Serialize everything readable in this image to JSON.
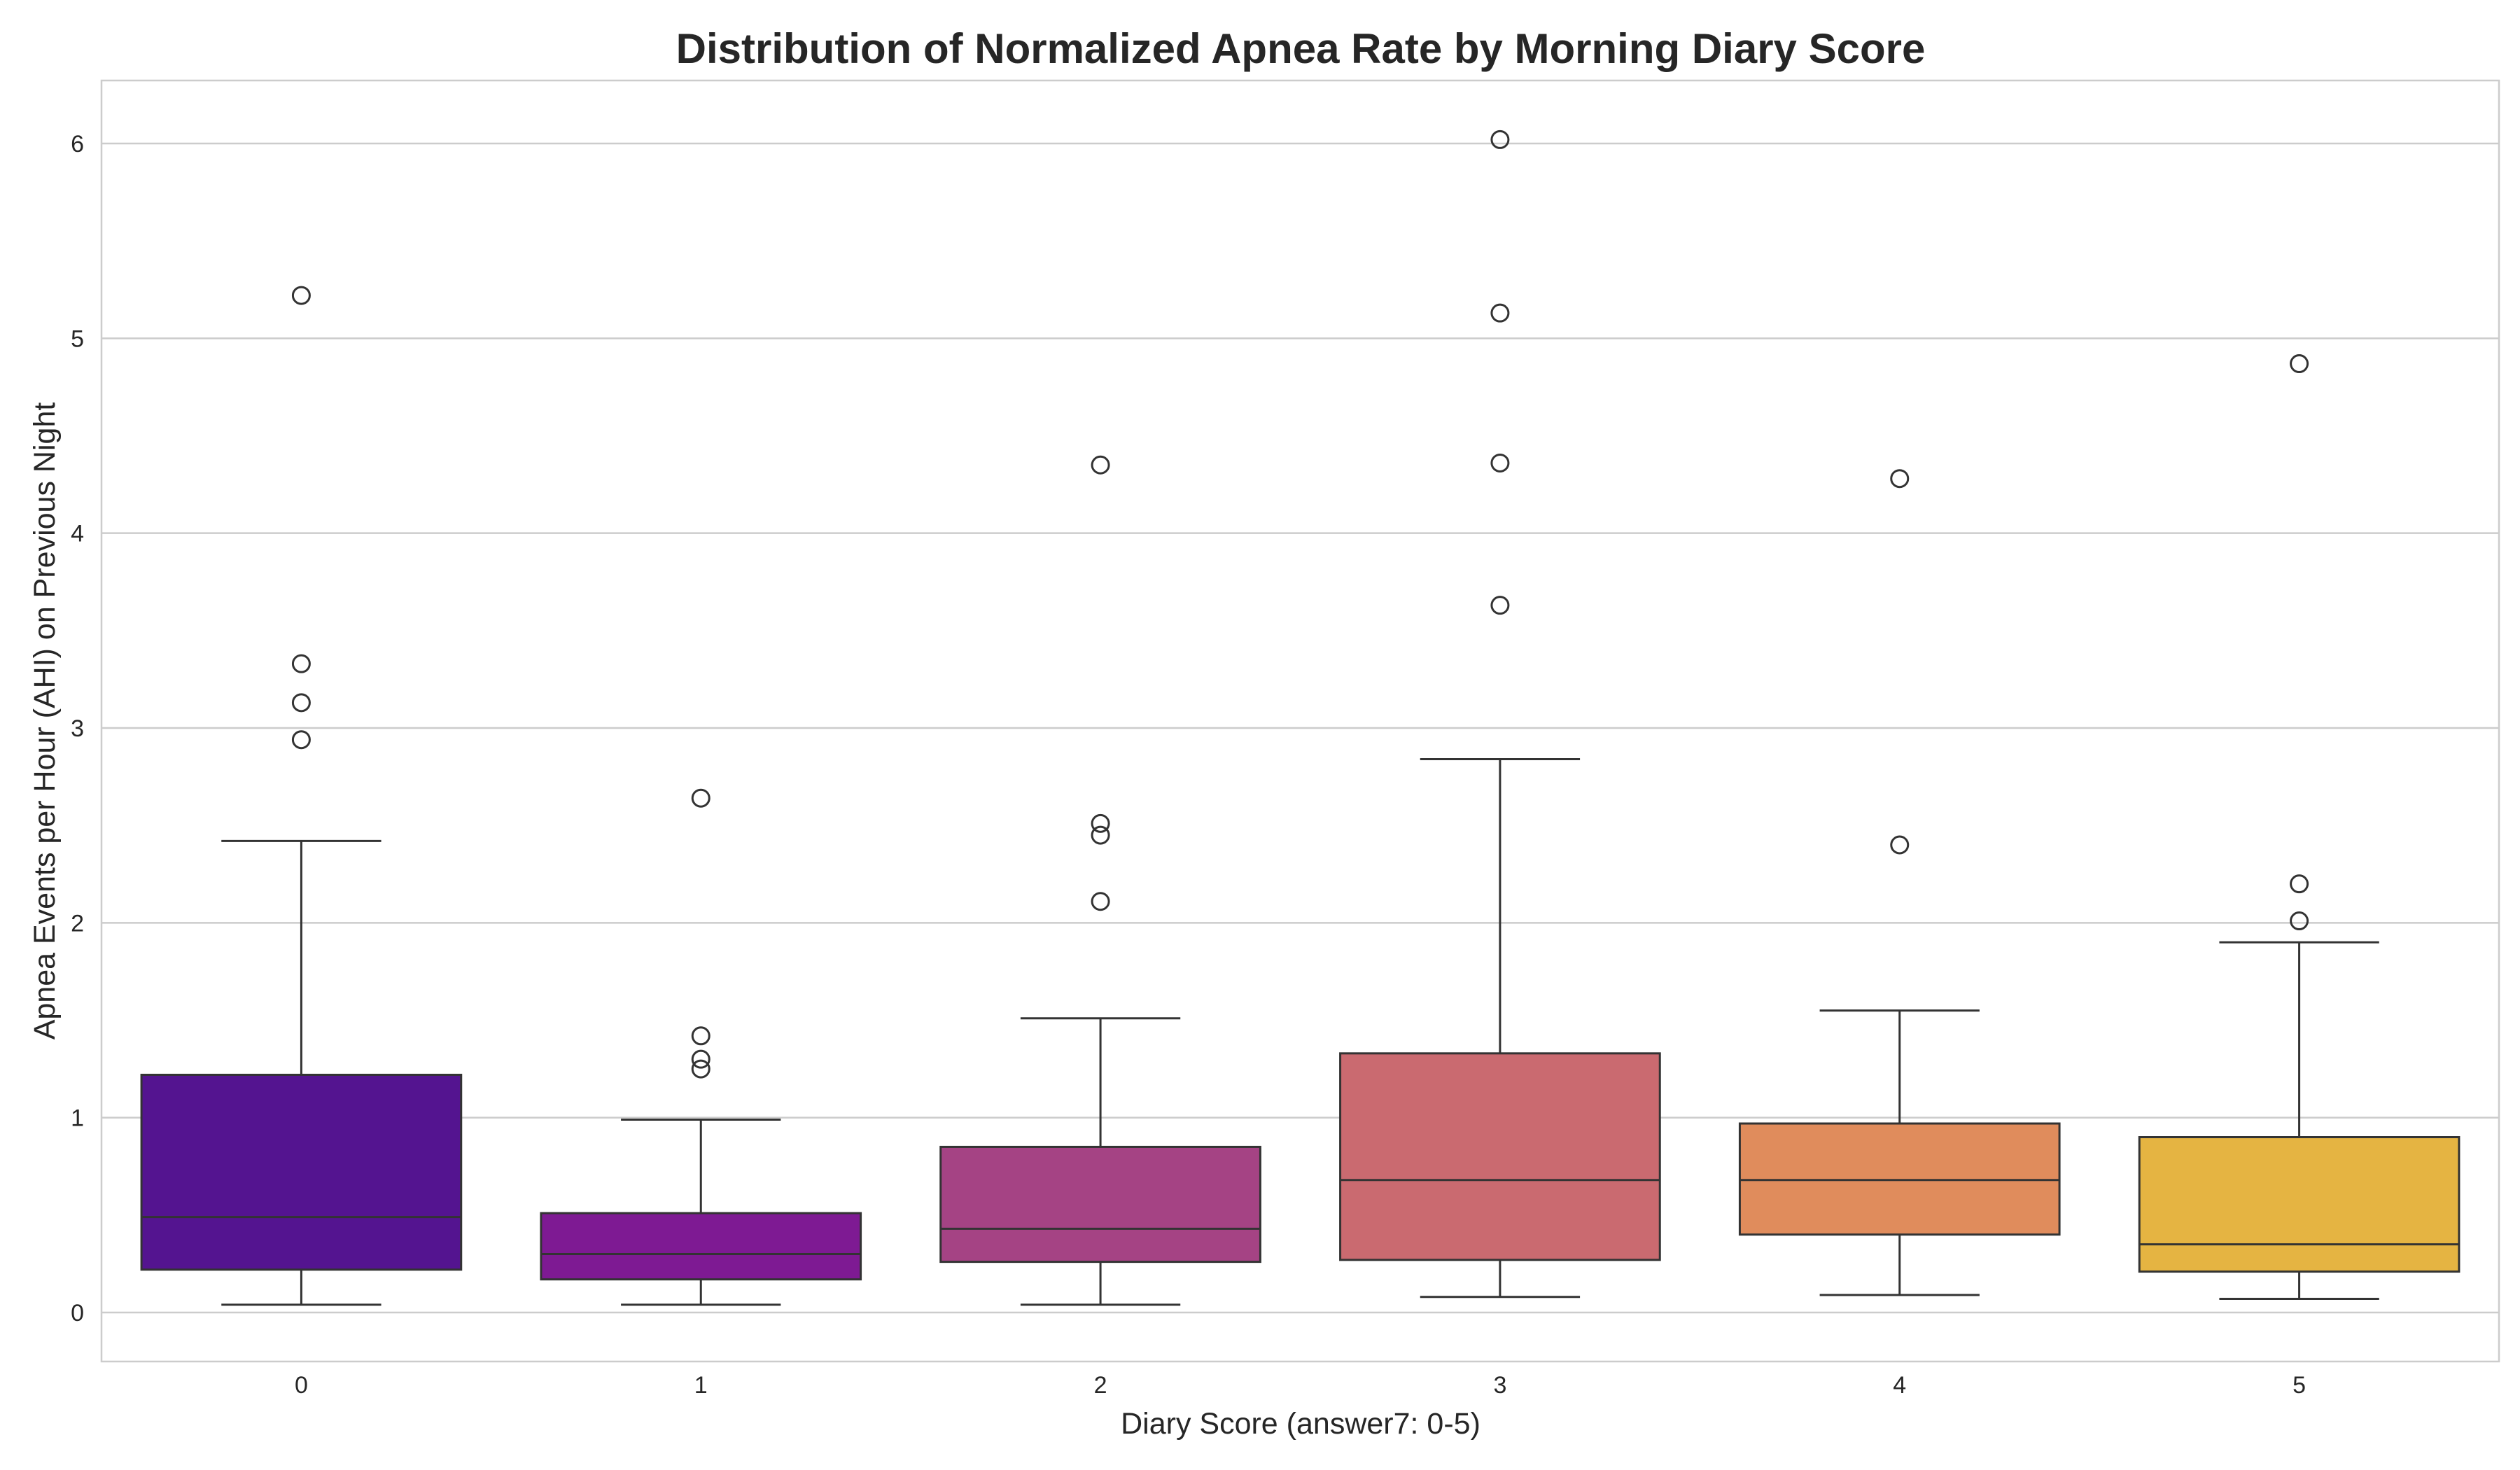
{
  "chart_data": {
    "type": "box",
    "title": "Distribution of Normalized Apnea Rate by Morning Diary Score",
    "xlabel": "Diary Score (answer7: 0-5)",
    "ylabel": "Apnea Events per Hour (AHI) on Previous Night",
    "ylim": [
      -0.25,
      6.3
    ],
    "yticks": [
      "0",
      "1",
      "2",
      "3",
      "4",
      "5",
      "6"
    ],
    "grid": true,
    "categories": [
      "0",
      "1",
      "2",
      "3",
      "4",
      "5"
    ],
    "boxes": [
      {
        "category": "0",
        "color": "#541490",
        "whisker_low": 0.04,
        "q1": 0.22,
        "median": 0.49,
        "q3": 1.22,
        "whisker_high": 2.42,
        "outliers": [
          2.94,
          3.13,
          3.33,
          5.22
        ]
      },
      {
        "category": "1",
        "color": "#7e1a93",
        "whisker_low": 0.04,
        "q1": 0.17,
        "median": 0.3,
        "q3": 0.51,
        "whisker_high": 0.99,
        "outliers": [
          1.25,
          1.3,
          1.42,
          2.64
        ]
      },
      {
        "category": "2",
        "color": "#a54384",
        "whisker_low": 0.04,
        "q1": 0.26,
        "median": 0.43,
        "q3": 0.85,
        "whisker_high": 1.51,
        "outliers": [
          2.11,
          2.45,
          2.51,
          4.35
        ]
      },
      {
        "category": "3",
        "color": "#ca6a70",
        "whisker_low": 0.08,
        "q1": 0.27,
        "median": 0.68,
        "q3": 1.33,
        "whisker_high": 2.84,
        "outliers": [
          3.63,
          4.36,
          5.13,
          6.02
        ]
      },
      {
        "category": "4",
        "color": "#e08c5c",
        "whisker_low": 0.09,
        "q1": 0.4,
        "median": 0.68,
        "q3": 0.97,
        "whisker_high": 1.55,
        "outliers": [
          2.4,
          4.28
        ]
      },
      {
        "category": "5",
        "color": "#e5b442",
        "whisker_low": 0.07,
        "q1": 0.21,
        "median": 0.35,
        "q3": 0.9,
        "whisker_high": 1.9,
        "outliers": [
          2.01,
          2.2,
          4.87
        ]
      }
    ]
  }
}
